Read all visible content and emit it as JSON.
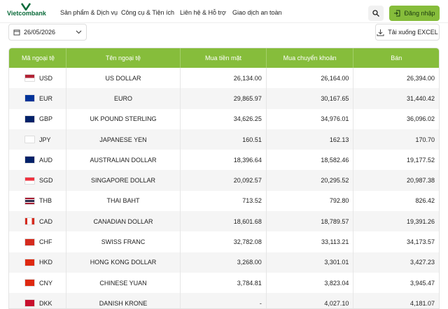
{
  "header": {
    "logo": "Vietcombank",
    "nav": [
      "Sản phẩm & Dịch vụ",
      "Công cụ & Tiện ích",
      "Liên hệ & Hỗ trợ",
      "Giao dịch an toàn"
    ],
    "login": "Đăng nhập"
  },
  "toolbar": {
    "date": "26/05/2026",
    "download": "Tải xuống EXCEL"
  },
  "table": {
    "columns": [
      "Mã ngoại tệ",
      "Tên ngoại tệ",
      "Mua tiền mặt",
      "Mua chuyển khoản",
      "Bán"
    ],
    "rows": [
      [
        "USD",
        "US DOLLAR",
        "26,134.00",
        "26,164.00",
        "26,394.00"
      ],
      [
        "EUR",
        "EURO",
        "29,865.97",
        "30,167.65",
        "31,440.42"
      ],
      [
        "GBP",
        "UK POUND STERLING",
        "34,626.25",
        "34,976.01",
        "36,096.02"
      ],
      [
        "JPY",
        "JAPANESE YEN",
        "160.51",
        "162.13",
        "170.70"
      ],
      [
        "AUD",
        "AUSTRALIAN DOLLAR",
        "18,396.64",
        "18,582.46",
        "19,177.52"
      ],
      [
        "SGD",
        "SINGAPORE DOLLAR",
        "20,092.57",
        "20,295.52",
        "20,987.38"
      ],
      [
        "THB",
        "THAI BAHT",
        "713.52",
        "792.80",
        "826.42"
      ],
      [
        "CAD",
        "CANADIAN DOLLAR",
        "18,601.68",
        "18,789.57",
        "19,391.26"
      ],
      [
        "CHF",
        "SWISS FRANC",
        "32,782.08",
        "33,113.21",
        "34,173.57"
      ],
      [
        "HKD",
        "HONG KONG DOLLAR",
        "3,268.00",
        "3,301.01",
        "3,427.23"
      ],
      [
        "CNY",
        "CHINESE YUAN",
        "3,784.81",
        "3,823.04",
        "3,945.47"
      ],
      [
        "DKK",
        "DANISH KRONE",
        "-",
        "4,027.10",
        "4,181.07"
      ]
    ]
  }
}
